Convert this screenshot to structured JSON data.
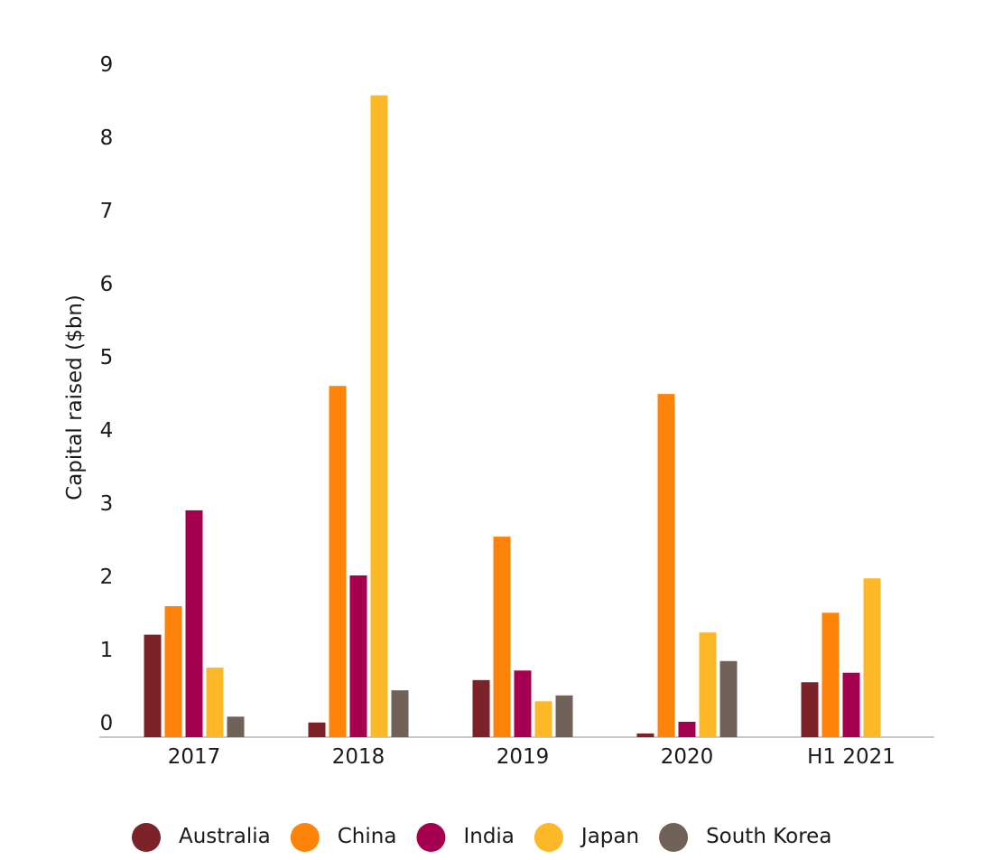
{
  "chart_data": {
    "type": "bar",
    "y_label": "Capital raised ($bn)",
    "categories": [
      "2017",
      "2018",
      "2019",
      "2020",
      "H1 2021"
    ],
    "series": [
      {
        "name": "Australia",
        "color": "#7b2329",
        "values": [
          1.4,
          0.2,
          0.78,
          0.05,
          0.75
        ]
      },
      {
        "name": "China",
        "color": "#fd8409",
        "values": [
          1.79,
          4.8,
          2.74,
          4.69,
          1.7
        ]
      },
      {
        "name": "India",
        "color": "#a5004f",
        "values": [
          3.1,
          2.21,
          0.91,
          0.21,
          0.88
        ]
      },
      {
        "name": "Japan",
        "color": "#fdb827",
        "values": [
          0.95,
          8.77,
          0.49,
          1.43,
          2.17
        ]
      },
      {
        "name": "South Korea",
        "color": "#706259",
        "values": [
          0.28,
          0.64,
          0.57,
          1.04,
          null
        ]
      }
    ],
    "ylim": [
      0,
      9
    ],
    "yticks": [
      0,
      1,
      2,
      3,
      4,
      5,
      6,
      7,
      8,
      9
    ],
    "grid": false
  }
}
